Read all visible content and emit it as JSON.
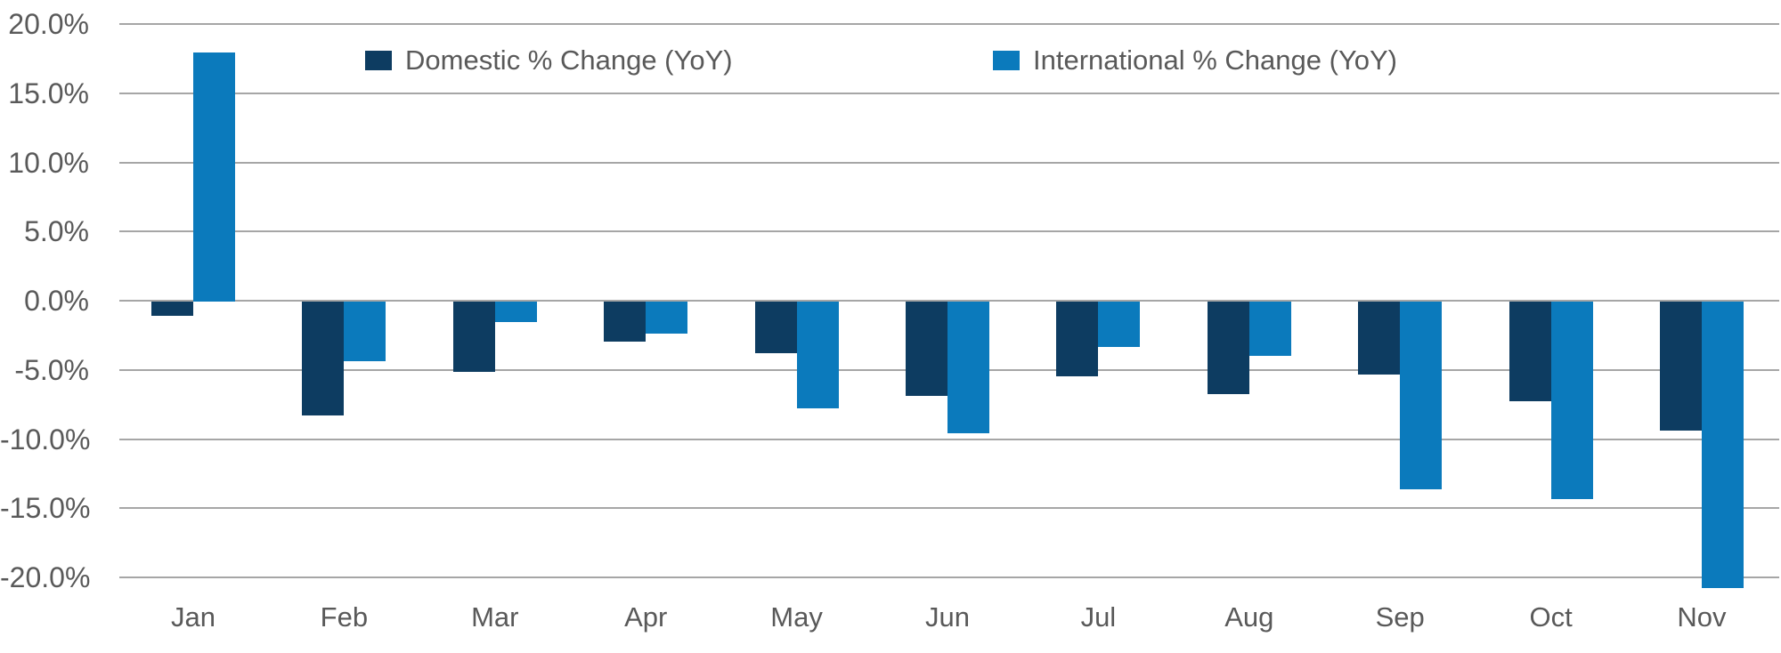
{
  "chart_data": {
    "type": "bar",
    "title": "",
    "categories": [
      "Jan",
      "Feb",
      "Mar",
      "Apr",
      "May",
      "Jun",
      "Jul",
      "Aug",
      "Sep",
      "Oct",
      "Nov"
    ],
    "series": [
      {
        "name": "Domestic % Change (YoY)",
        "color": "#0d3c61",
        "values": [
          -1.0,
          -8.2,
          -5.1,
          -2.9,
          -3.7,
          -6.8,
          -5.4,
          -6.7,
          -5.3,
          -7.2,
          -9.3
        ]
      },
      {
        "name": "International % Change (YoY)",
        "color": "#0b7abc",
        "values": [
          18.0,
          -4.3,
          -1.5,
          -2.3,
          -7.7,
          -9.5,
          -3.3,
          -3.9,
          -13.6,
          -14.3,
          -20.7
        ]
      }
    ],
    "y_axis": {
      "min": -20,
      "max": 20,
      "step": 5,
      "tick_labels": [
        "20.0%",
        "15.0%",
        "10.0%",
        "5.0%",
        "0.0%",
        "-5.0%",
        "-10.0%",
        "-15.0%",
        "-20.0%"
      ],
      "unit": "%"
    },
    "legend_position": "top",
    "grid": true,
    "colors": {
      "gridline": "#a6a6a6",
      "axis_text": "#595959",
      "background": "#ffffff"
    }
  }
}
